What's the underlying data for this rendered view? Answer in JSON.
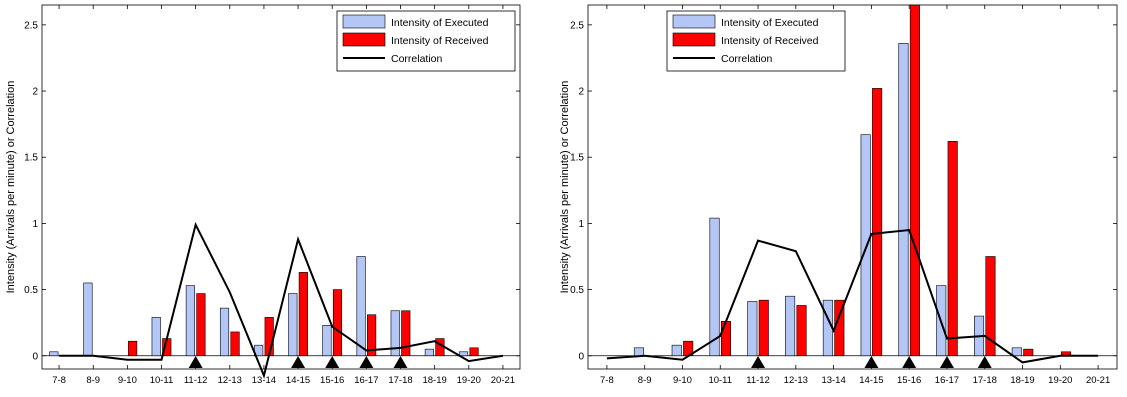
{
  "chart_data": [
    {
      "type": "bar",
      "ylabel": "Intensity (Arrivals per minute) or Correlation",
      "xlabel": "",
      "categories": [
        "7-8",
        "8-9",
        "9-10",
        "10-11",
        "11-12",
        "12-13",
        "13-14",
        "14-15",
        "15-16",
        "16-17",
        "17-18",
        "18-19",
        "19-20",
        "20-21"
      ],
      "ylim": [
        -0.1,
        2.65
      ],
      "yticks": [
        0,
        0.5,
        1,
        1.5,
        2,
        2.5
      ],
      "ytick_labels": [
        "0",
        "0.5",
        "1",
        "1.5",
        "2",
        "2.5"
      ],
      "legend_position": "top-right",
      "markers": [
        "11-12",
        "14-15",
        "15-16",
        "16-17",
        "17-18"
      ],
      "series": [
        {
          "name": "Intensity of Executed",
          "type": "bar",
          "color": "#b3c6f5",
          "values": [
            0.03,
            0.55,
            0.0,
            0.29,
            0.53,
            0.36,
            0.08,
            0.47,
            0.23,
            0.75,
            0.34,
            0.05,
            0.03,
            0.0
          ]
        },
        {
          "name": "Intensity of Received",
          "type": "bar",
          "color": "#ff0000",
          "values": [
            0.0,
            0.0,
            0.11,
            0.13,
            0.47,
            0.18,
            0.29,
            0.63,
            0.5,
            0.31,
            0.34,
            0.13,
            0.06,
            0.0
          ]
        },
        {
          "name": "Correlation",
          "type": "line",
          "color": "#000000",
          "values": [
            0.0,
            0.0,
            -0.03,
            -0.03,
            0.99,
            0.48,
            -0.15,
            0.88,
            0.22,
            0.04,
            0.06,
            0.11,
            -0.04,
            0.0
          ]
        }
      ]
    },
    {
      "type": "bar",
      "ylabel": "Intensity (Arrivals per minute) or Correlation",
      "xlabel": "",
      "categories": [
        "7-8",
        "8-9",
        "9-10",
        "10-11",
        "11-12",
        "12-13",
        "13-14",
        "14-15",
        "15-16",
        "16-17",
        "17-18",
        "18-19",
        "19-20",
        "20-21"
      ],
      "ylim": [
        -0.1,
        2.65
      ],
      "yticks": [
        0,
        0.5,
        1,
        1.5,
        2,
        2.5
      ],
      "ytick_labels": [
        "0",
        "0.5",
        "1",
        "1.5",
        "2",
        "2.5"
      ],
      "legend_position": "top-left",
      "markers": [
        "11-12",
        "14-15",
        "15-16",
        "16-17",
        "17-18"
      ],
      "series": [
        {
          "name": "Intensity of Executed",
          "type": "bar",
          "color": "#b3c6f5",
          "values": [
            0.0,
            0.06,
            0.08,
            1.04,
            0.41,
            0.45,
            0.42,
            1.67,
            2.36,
            0.53,
            0.3,
            0.06,
            0.0,
            0.0
          ]
        },
        {
          "name": "Intensity of Received",
          "type": "bar",
          "color": "#ff0000",
          "values": [
            0.0,
            0.0,
            0.11,
            0.26,
            0.42,
            0.38,
            0.42,
            2.02,
            2.65,
            1.62,
            0.75,
            0.05,
            0.03,
            0.0
          ]
        },
        {
          "name": "Correlation",
          "type": "line",
          "color": "#000000",
          "values": [
            -0.02,
            0.0,
            -0.03,
            0.15,
            0.87,
            0.79,
            0.19,
            0.92,
            0.95,
            0.13,
            0.15,
            -0.05,
            0.0,
            0.0
          ]
        }
      ]
    }
  ]
}
